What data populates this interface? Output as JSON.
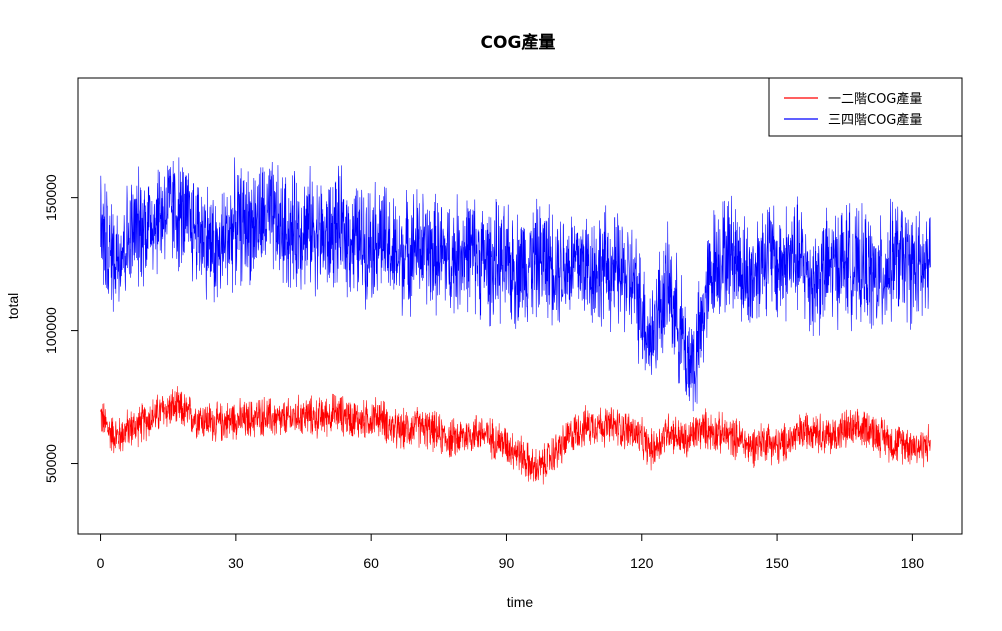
{
  "chart_data": {
    "type": "line",
    "title": "COG產量",
    "xlabel": "time",
    "ylabel": "total",
    "xlim": [
      -5,
      191
    ],
    "ylim": [
      23500,
      195000
    ],
    "x_ticks": [
      0,
      30,
      60,
      90,
      120,
      150,
      180
    ],
    "y_ticks": [
      50000,
      100000,
      150000
    ],
    "legend_position": "top-right",
    "series": [
      {
        "name": "一二階COG產量",
        "color": "#ff0000",
        "x": [
          0,
          2,
          4,
          6,
          8,
          10,
          12,
          14,
          16,
          18,
          20,
          22,
          24,
          26,
          28,
          30,
          32,
          34,
          36,
          38,
          40,
          42,
          44,
          46,
          48,
          50,
          52,
          54,
          56,
          58,
          60,
          62,
          64,
          66,
          68,
          70,
          72,
          74,
          76,
          78,
          80,
          82,
          84,
          86,
          88,
          90,
          92,
          94,
          96,
          98,
          100,
          102,
          104,
          106,
          108,
          110,
          112,
          114,
          116,
          118,
          120,
          122,
          124,
          126,
          128,
          130,
          132,
          134,
          136,
          138,
          140,
          142,
          144,
          146,
          148,
          150,
          152,
          154,
          156,
          158,
          160,
          162,
          164,
          166,
          168,
          170,
          172,
          174,
          176,
          178,
          180,
          182,
          184
        ],
        "mean": [
          68000,
          62000,
          60000,
          63000,
          64000,
          66000,
          68000,
          70000,
          71000,
          70000,
          68000,
          67000,
          66000,
          65000,
          66000,
          67000,
          66000,
          67000,
          68000,
          67000,
          66000,
          67000,
          68000,
          68000,
          67000,
          68000,
          69000,
          68000,
          67000,
          66000,
          67000,
          68000,
          64000,
          62000,
          63000,
          64000,
          63000,
          62000,
          60000,
          59000,
          60000,
          61000,
          62000,
          60000,
          59000,
          57000,
          55000,
          52000,
          48000,
          49000,
          53000,
          56000,
          60000,
          63000,
          64000,
          65000,
          64000,
          64000,
          63000,
          62000,
          59000,
          55000,
          58000,
          63000,
          60000,
          58000,
          62000,
          63000,
          62000,
          61000,
          60000,
          59000,
          56000,
          58000,
          59000,
          56000,
          58000,
          60000,
          62000,
          64000,
          61000,
          60000,
          62000,
          63000,
          62000,
          64000,
          61000,
          60000,
          57000,
          58000,
          57000,
          56000,
          58000
        ],
        "spread": 9000
      },
      {
        "name": "三四階COG產量",
        "color": "#0000ff",
        "x": [
          0,
          2,
          4,
          6,
          8,
          10,
          12,
          14,
          16,
          18,
          20,
          22,
          24,
          26,
          28,
          30,
          32,
          34,
          36,
          38,
          40,
          42,
          44,
          46,
          48,
          50,
          52,
          54,
          56,
          58,
          60,
          62,
          64,
          66,
          68,
          70,
          72,
          74,
          76,
          78,
          80,
          82,
          84,
          86,
          88,
          90,
          92,
          94,
          96,
          98,
          100,
          102,
          104,
          106,
          108,
          110,
          112,
          114,
          116,
          118,
          120,
          122,
          124,
          126,
          128,
          130,
          132,
          134,
          136,
          138,
          140,
          142,
          144,
          146,
          148,
          150,
          152,
          154,
          156,
          158,
          160,
          162,
          164,
          166,
          168,
          170,
          172,
          174,
          176,
          178,
          180,
          182,
          184
        ],
        "mean": [
          140000,
          128000,
          130000,
          134000,
          138000,
          140000,
          142000,
          145000,
          146000,
          143000,
          140000,
          138000,
          134000,
          128000,
          136000,
          140000,
          140000,
          140000,
          142000,
          142000,
          138000,
          136000,
          138000,
          139000,
          137000,
          134000,
          138000,
          137000,
          134000,
          133000,
          134000,
          136000,
          130000,
          127000,
          130000,
          132000,
          130000,
          129000,
          128000,
          127000,
          130000,
          130000,
          128000,
          125000,
          126000,
          124000,
          123000,
          125000,
          126000,
          127000,
          126000,
          124000,
          125000,
          126000,
          124000,
          123000,
          124000,
          122000,
          121000,
          118000,
          108000,
          96000,
          110000,
          116000,
          104000,
          90000,
          88000,
          110000,
          126000,
          128000,
          130000,
          124000,
          118000,
          126000,
          130000,
          124000,
          126000,
          128000,
          124000,
          118000,
          122000,
          124000,
          126000,
          126000,
          122000,
          124000,
          118000,
          122000,
          128000,
          126000,
          124000,
          122000,
          124000
        ],
        "spread": 26000
      }
    ]
  }
}
